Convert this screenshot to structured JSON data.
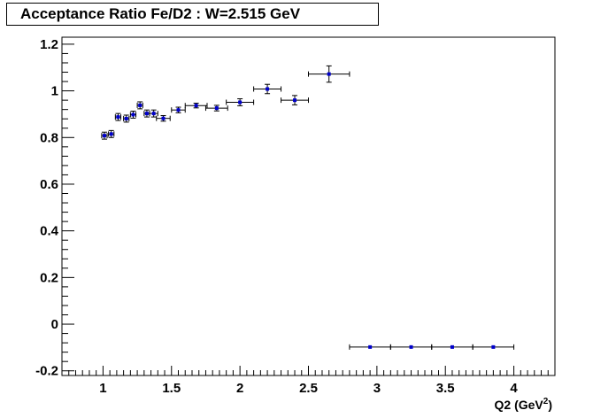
{
  "chart_data": {
    "type": "scatter",
    "title": "Acceptance Ratio Fe/D2 : W=2.515 GeV",
    "xlabel": "Q2 (GeV",
    "xlabel_sup": "2",
    "xlabel_end": ")",
    "ylabel": "",
    "xlim": [
      0.7,
      4.3
    ],
    "ylim": [
      -0.22,
      1.23
    ],
    "x_ticks": [
      1,
      1.5,
      2,
      2.5,
      3,
      3.5,
      4
    ],
    "x_tick_labels": [
      "1",
      "1.5",
      "2",
      "2.5",
      "3",
      "3.5",
      "4"
    ],
    "y_ticks": [
      -0.2,
      0,
      0.2,
      0.4,
      0.6,
      0.8,
      1,
      1.2
    ],
    "y_tick_labels": [
      "-0.2",
      "0",
      "0.2",
      "0.4",
      "0.6",
      "0.8",
      "1",
      "1.2"
    ],
    "grid": false,
    "marker_color": "#0000cc",
    "series": [
      {
        "points": [
          {
            "x": 1.01,
            "y": 0.808,
            "xerr": 0.02,
            "yerr": 0.015
          },
          {
            "x": 1.06,
            "y": 0.815,
            "xerr": 0.02,
            "yerr": 0.015
          },
          {
            "x": 1.11,
            "y": 0.888,
            "xerr": 0.02,
            "yerr": 0.015
          },
          {
            "x": 1.17,
            "y": 0.881,
            "xerr": 0.02,
            "yerr": 0.015
          },
          {
            "x": 1.22,
            "y": 0.898,
            "xerr": 0.02,
            "yerr": 0.015
          },
          {
            "x": 1.27,
            "y": 0.938,
            "xerr": 0.02,
            "yerr": 0.015
          },
          {
            "x": 1.32,
            "y": 0.903,
            "xerr": 0.02,
            "yerr": 0.015
          },
          {
            "x": 1.37,
            "y": 0.903,
            "xerr": 0.03,
            "yerr": 0.015
          },
          {
            "x": 1.44,
            "y": 0.882,
            "xerr": 0.05,
            "yerr": 0.012
          },
          {
            "x": 1.55,
            "y": 0.918,
            "xerr": 0.05,
            "yerr": 0.012
          },
          {
            "x": 1.68,
            "y": 0.937,
            "xerr": 0.08,
            "yerr": 0.01
          },
          {
            "x": 1.83,
            "y": 0.926,
            "xerr": 0.08,
            "yerr": 0.012
          },
          {
            "x": 2.0,
            "y": 0.951,
            "xerr": 0.1,
            "yerr": 0.015
          },
          {
            "x": 2.2,
            "y": 1.008,
            "xerr": 0.1,
            "yerr": 0.02
          },
          {
            "x": 2.4,
            "y": 0.96,
            "xerr": 0.1,
            "yerr": 0.02
          },
          {
            "x": 2.65,
            "y": 1.072,
            "xerr": 0.15,
            "yerr": 0.035
          },
          {
            "x": 2.95,
            "y": -0.098,
            "xerr": 0.15,
            "yerr": 0
          },
          {
            "x": 3.25,
            "y": -0.098,
            "xerr": 0.15,
            "yerr": 0
          },
          {
            "x": 3.55,
            "y": -0.098,
            "xerr": 0.15,
            "yerr": 0
          },
          {
            "x": 3.85,
            "y": -0.098,
            "xerr": 0.15,
            "yerr": 0
          }
        ]
      }
    ]
  }
}
